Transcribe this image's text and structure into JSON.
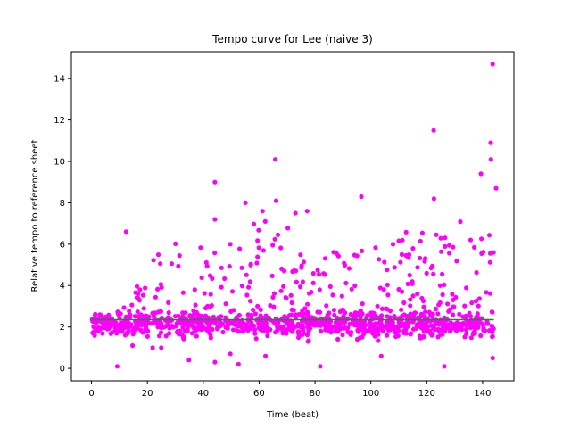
{
  "chart_data": {
    "type": "scatter",
    "title": "Tempo curve for Lee (naive 3)",
    "xlabel": "Time (beat)",
    "ylabel": "Relative tempo to reference sheet",
    "xlim": [
      -7.2,
      151.2
    ],
    "ylim": [
      -0.6,
      15.3
    ],
    "xticks": [
      0,
      20,
      40,
      60,
      80,
      100,
      120,
      140
    ],
    "yticks": [
      0,
      2,
      4,
      6,
      8,
      10,
      12,
      14
    ],
    "grid": false,
    "legend": "none",
    "point_color": "#ff00ff",
    "reference_line": {
      "y": 2.35,
      "x_range": [
        0,
        144
      ],
      "color": "#2e7d32"
    },
    "notable_points": [
      {
        "x": 143.6,
        "y": 14.7
      },
      {
        "x": 122.5,
        "y": 11.5
      },
      {
        "x": 142.9,
        "y": 10.9
      },
      {
        "x": 143.0,
        "y": 10.1
      },
      {
        "x": 65.8,
        "y": 10.1
      },
      {
        "x": 44.2,
        "y": 9.0
      },
      {
        "x": 139.4,
        "y": 9.4
      },
      {
        "x": 144.8,
        "y": 8.7
      },
      {
        "x": 96.6,
        "y": 8.3
      },
      {
        "x": 122.6,
        "y": 8.2
      },
      {
        "x": 66.1,
        "y": 8.1
      },
      {
        "x": 55.1,
        "y": 8.0
      },
      {
        "x": 12.4,
        "y": 6.6
      },
      {
        "x": 44.2,
        "y": 7.2
      },
      {
        "x": 61.2,
        "y": 7.6
      },
      {
        "x": 73.0,
        "y": 7.5
      },
      {
        "x": 77.2,
        "y": 7.6
      },
      {
        "x": 9.2,
        "y": 0.1
      },
      {
        "x": 81.9,
        "y": 0.1
      },
      {
        "x": 126.3,
        "y": 0.1
      },
      {
        "x": 143.6,
        "y": 0.5
      },
      {
        "x": 34.9,
        "y": 0.4
      },
      {
        "x": 44.2,
        "y": 0.3
      },
      {
        "x": 52.6,
        "y": 0.2
      },
      {
        "x": 103.7,
        "y": 0.6
      },
      {
        "x": 62.3,
        "y": 0.6
      },
      {
        "x": 21.9,
        "y": 1.0
      },
      {
        "x": 25.0,
        "y": 1.0
      },
      {
        "x": 14.7,
        "y": 1.1
      },
      {
        "x": 77.5,
        "y": 1.3
      },
      {
        "x": 49.7,
        "y": 0.7
      }
    ],
    "series": [
      {
        "x_range": [
          0,
          144
        ],
        "band": {
          "center": 2.1,
          "spread": 0.45
        },
        "upper_envelope": [
          [
            0,
            2.4
          ],
          [
            10,
            2.6
          ],
          [
            20,
            5.0
          ],
          [
            30,
            6.3
          ],
          [
            40,
            6.0
          ],
          [
            50,
            6.3
          ],
          [
            60,
            7.5
          ],
          [
            70,
            7.0
          ],
          [
            80,
            5.0
          ],
          [
            90,
            6.3
          ],
          [
            100,
            6.0
          ],
          [
            110,
            6.5
          ],
          [
            120,
            7.0
          ],
          [
            130,
            7.5
          ],
          [
            140,
            7.0
          ],
          [
            144,
            7.0
          ]
        ],
        "count": 1150
      }
    ]
  }
}
